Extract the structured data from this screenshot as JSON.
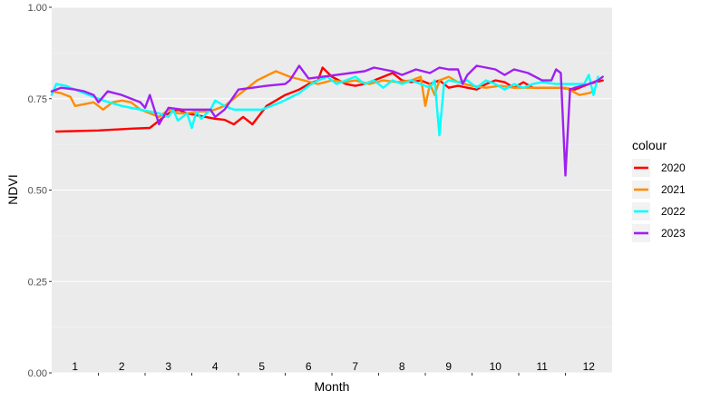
{
  "chart_data": {
    "type": "line",
    "title": "",
    "xlabel": "Month",
    "ylabel": "NDVI",
    "ylim": [
      0,
      1
    ],
    "xlim": [
      0.5,
      12.5
    ],
    "y_ticks": [
      "0.00",
      "0.25",
      "0.50",
      "0.75",
      "1.00"
    ],
    "y_tick_values": [
      0,
      0.25,
      0.5,
      0.75,
      1.0
    ],
    "month_labels": [
      "1",
      "2",
      "3",
      "4",
      "5",
      "6",
      "7",
      "8",
      "9",
      "10",
      "11",
      "12"
    ],
    "grid": true,
    "legend": {
      "title": "colour",
      "position": "right"
    },
    "series": [
      {
        "name": "2020",
        "color": "#ff0000",
        "x": [
          0.6,
          1.5,
          2.2,
          2.6,
          3.0,
          3.2,
          3.4,
          3.6,
          3.8,
          4.0,
          4.2,
          4.4,
          4.6,
          4.8,
          5.1,
          5.5,
          5.8,
          6.0,
          6.2,
          6.3,
          6.5,
          6.8,
          7.0,
          7.2,
          7.4,
          7.6,
          7.8,
          8.0,
          8.2,
          8.4,
          8.6,
          8.8,
          9.0,
          9.2,
          9.4,
          9.6,
          9.8,
          10.0,
          10.2,
          10.4,
          10.6,
          10.8,
          11.0,
          11.4,
          11.7,
          12.0,
          12.3
        ],
        "values": [
          0.66,
          0.663,
          0.668,
          0.67,
          0.71,
          0.72,
          0.71,
          0.705,
          0.7,
          0.695,
          0.692,
          0.68,
          0.7,
          0.68,
          0.73,
          0.76,
          0.775,
          0.79,
          0.8,
          0.835,
          0.81,
          0.79,
          0.785,
          0.79,
          0.8,
          0.81,
          0.82,
          0.8,
          0.795,
          0.8,
          0.79,
          0.8,
          0.78,
          0.785,
          0.78,
          0.775,
          0.79,
          0.8,
          0.795,
          0.78,
          0.795,
          0.78,
          0.78,
          0.78,
          0.775,
          0.79,
          0.8
        ]
      },
      {
        "name": "2021",
        "color": "#ff8c00",
        "x": [
          0.5,
          0.7,
          0.9,
          1.0,
          1.2,
          1.4,
          1.6,
          1.8,
          2.0,
          2.2,
          2.4,
          2.6,
          2.8,
          3.0,
          3.2,
          3.4,
          3.6,
          3.8,
          4.0,
          4.2,
          4.5,
          4.9,
          5.3,
          5.6,
          5.9,
          6.2,
          6.5,
          6.8,
          7.0,
          7.3,
          7.6,
          7.9,
          8.2,
          8.4,
          8.5,
          8.6,
          8.7,
          8.8,
          9.0,
          9.2,
          9.5,
          9.8,
          10.1,
          10.4,
          10.7,
          11.0,
          11.3,
          11.5,
          11.8,
          12.0,
          12.1
        ],
        "values": [
          0.77,
          0.765,
          0.755,
          0.73,
          0.735,
          0.74,
          0.72,
          0.74,
          0.745,
          0.74,
          0.72,
          0.71,
          0.7,
          0.72,
          0.71,
          0.71,
          0.715,
          0.715,
          0.72,
          0.73,
          0.76,
          0.8,
          0.825,
          0.81,
          0.8,
          0.79,
          0.8,
          0.795,
          0.8,
          0.79,
          0.8,
          0.795,
          0.8,
          0.81,
          0.73,
          0.79,
          0.76,
          0.8,
          0.81,
          0.795,
          0.785,
          0.78,
          0.785,
          0.78,
          0.78,
          0.78,
          0.78,
          0.78,
          0.76,
          0.765,
          0.77
        ]
      },
      {
        "name": "2022",
        "color": "#00ffff",
        "x": [
          0.5,
          0.6,
          0.8,
          1.0,
          1.3,
          1.6,
          2.0,
          2.4,
          2.8,
          3.0,
          3.1,
          3.2,
          3.4,
          3.5,
          3.6,
          3.7,
          3.9,
          4.0,
          4.2,
          4.4,
          4.7,
          5.0,
          5.4,
          5.8,
          6.0,
          6.2,
          6.4,
          6.6,
          6.8,
          7.0,
          7.2,
          7.4,
          7.6,
          7.8,
          8.0,
          8.2,
          8.4,
          8.6,
          8.7,
          8.8,
          8.9,
          9.0,
          9.2,
          9.4,
          9.6,
          9.8,
          10.0,
          10.2,
          10.4,
          10.6,
          10.8,
          11.0,
          11.3,
          11.6,
          11.9,
          12.0,
          12.1,
          12.2
        ],
        "values": [
          0.76,
          0.79,
          0.785,
          0.775,
          0.76,
          0.745,
          0.73,
          0.72,
          0.71,
          0.7,
          0.72,
          0.69,
          0.71,
          0.67,
          0.715,
          0.695,
          0.72,
          0.745,
          0.73,
          0.72,
          0.72,
          0.72,
          0.74,
          0.765,
          0.785,
          0.8,
          0.81,
          0.79,
          0.8,
          0.81,
          0.79,
          0.8,
          0.78,
          0.8,
          0.79,
          0.8,
          0.79,
          0.78,
          0.8,
          0.65,
          0.79,
          0.8,
          0.795,
          0.8,
          0.78,
          0.8,
          0.79,
          0.775,
          0.79,
          0.78,
          0.79,
          0.795,
          0.79,
          0.79,
          0.79,
          0.815,
          0.76,
          0.81
        ]
      },
      {
        "name": "2023",
        "color": "#a020f0",
        "x": [
          0.5,
          0.7,
          1.0,
          1.2,
          1.4,
          1.5,
          1.7,
          2.0,
          2.2,
          2.4,
          2.5,
          2.6,
          2.8,
          3.0,
          3.3,
          3.6,
          3.9,
          4.0,
          4.2,
          4.5,
          4.8,
          5.1,
          5.5,
          5.6,
          5.8,
          6.0,
          6.3,
          6.6,
          6.9,
          7.2,
          7.4,
          7.6,
          7.8,
          8.0,
          8.3,
          8.6,
          8.8,
          9.0,
          9.2,
          9.3,
          9.4,
          9.6,
          9.8,
          10.0,
          10.2,
          10.4,
          10.7,
          11.0,
          11.2,
          11.3,
          11.4,
          11.5,
          11.6,
          11.7,
          12.0,
          12.2,
          12.3
        ],
        "values": [
          0.77,
          0.78,
          0.775,
          0.77,
          0.76,
          0.74,
          0.77,
          0.76,
          0.75,
          0.74,
          0.725,
          0.76,
          0.68,
          0.725,
          0.72,
          0.72,
          0.72,
          0.7,
          0.72,
          0.775,
          0.78,
          0.785,
          0.79,
          0.8,
          0.84,
          0.805,
          0.81,
          0.815,
          0.82,
          0.825,
          0.835,
          0.83,
          0.825,
          0.815,
          0.83,
          0.82,
          0.835,
          0.83,
          0.83,
          0.79,
          0.815,
          0.84,
          0.835,
          0.83,
          0.815,
          0.83,
          0.82,
          0.8,
          0.8,
          0.83,
          0.82,
          0.54,
          0.775,
          0.78,
          0.79,
          0.8,
          0.81
        ]
      }
    ]
  }
}
